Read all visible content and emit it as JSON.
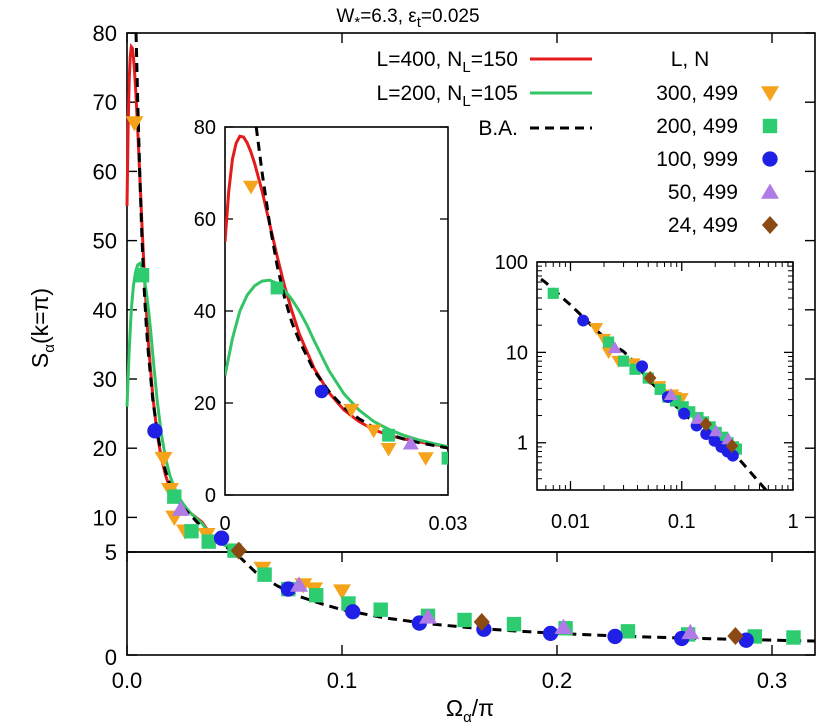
{
  "colors": {
    "red": "#e41a1c",
    "green": "#33c466",
    "orange": "#f5a31b",
    "square": "#2ecc71",
    "blue": "#1f1fe6",
    "purple": "#b07be6",
    "brown": "#8b4a13",
    "ba": "#000000"
  },
  "chart_data": {
    "type": "line",
    "title": {
      "W": "W",
      "wsub": "*",
      "weq": "=6.3, ",
      "eps": "ε",
      "esub": "t",
      "eeq": "=0.025"
    },
    "xlabel": {
      "main": "Ω",
      "sub": "α",
      "rest": "/π"
    },
    "ylabel": {
      "main": "S",
      "sub": "α",
      "rest": "(k=π)"
    },
    "legend": {
      "lines": [
        {
          "key": "red",
          "pre": "L=400, N",
          "sub": "L",
          "post": "=150"
        },
        {
          "key": "green",
          "pre": "L=200, N",
          "sub": "L",
          "post": "=105"
        },
        {
          "key": "ba",
          "pre": "B.A.",
          "sub": "",
          "post": ""
        }
      ],
      "header": "L,  N",
      "points": [
        {
          "key": "orange",
          "label": "300, 499",
          "marker": "tri-down"
        },
        {
          "key": "square",
          "label": "200, 499",
          "marker": "square"
        },
        {
          "key": "blue",
          "label": "100, 999",
          "marker": "circle"
        },
        {
          "key": "purple",
          "label": "50, 499",
          "marker": "tri-up"
        },
        {
          "key": "brown",
          "label": "24, 499",
          "marker": "diamond"
        }
      ]
    },
    "upper_panel": {
      "xlim": [
        0,
        0.32
      ],
      "ylim": [
        5,
        80
      ],
      "xticks": [
        0.0,
        0.1,
        0.2,
        0.3
      ],
      "xtick_labels": [
        "0.0",
        "0.1",
        "0.2",
        "0.3"
      ],
      "yticks": [
        10,
        20,
        30,
        40,
        50,
        60,
        70,
        80
      ],
      "ytick_labels": [
        "10",
        "20",
        "30",
        "40",
        "50",
        "60",
        "70",
        "80"
      ]
    },
    "lower_panel": {
      "ylim": [
        0,
        5
      ],
      "yticks": [
        0,
        5
      ],
      "ytick_labels": [
        "0",
        "5"
      ]
    },
    "inset_linear": {
      "xlim": [
        0,
        0.03
      ],
      "ylim": [
        0,
        80
      ],
      "xtick_labels": [
        "0",
        "0.03"
      ],
      "yticks": [
        0,
        20,
        40,
        60,
        80
      ],
      "ytick_labels": [
        "0",
        "20",
        "40",
        "60",
        "80"
      ]
    },
    "inset_log": {
      "xlim": [
        0.005,
        1
      ],
      "ylim": [
        0.3,
        100
      ],
      "xticks": [
        0.01,
        0.1,
        1
      ],
      "xtick_labels": [
        "0.01",
        "0.1",
        "1"
      ],
      "yticks": [
        1,
        10,
        100
      ],
      "ytick_labels": [
        "1",
        "10",
        "100"
      ]
    },
    "series": [
      {
        "key": "red",
        "kind": "line",
        "x": [
          0.0,
          0.0005,
          0.001,
          0.0015,
          0.002,
          0.0025,
          0.003,
          0.0035,
          0.004,
          0.005,
          0.006,
          0.007,
          0.008,
          0.009,
          0.01,
          0.012,
          0.014,
          0.016,
          0.018,
          0.02,
          0.022,
          0.024,
          0.026,
          0.028,
          0.03,
          0.035,
          0.04,
          0.05
        ],
        "y": [
          55,
          66,
          73,
          76.5,
          78,
          77.8,
          76.5,
          74.5,
          72,
          66,
          59,
          52,
          45.5,
          40,
          35,
          27.5,
          22.2,
          18.5,
          16,
          14.2,
          13,
          12.2,
          11.6,
          11,
          10.5,
          9.3,
          7.0,
          5.2
        ]
      },
      {
        "key": "green",
        "kind": "line",
        "x": [
          0.0,
          0.001,
          0.002,
          0.003,
          0.004,
          0.005,
          0.006,
          0.007,
          0.008,
          0.009,
          0.01,
          0.011,
          0.012,
          0.014,
          0.016,
          0.018,
          0.02,
          0.022,
          0.024,
          0.026,
          0.028,
          0.03,
          0.035,
          0.04,
          0.05
        ],
        "y": [
          26,
          34,
          40,
          43.5,
          45.5,
          46.5,
          46.7,
          46,
          44.5,
          42.5,
          40,
          37,
          33.5,
          27,
          22,
          18.5,
          16,
          14.3,
          13,
          12,
          11.2,
          10.5,
          9.1,
          6.9,
          5.2
        ]
      },
      {
        "key": "ba",
        "kind": "line",
        "x": [
          0.0042,
          0.005,
          0.006,
          0.007,
          0.008,
          0.009,
          0.01,
          0.012,
          0.014,
          0.016,
          0.018,
          0.02,
          0.022,
          0.024,
          0.026,
          0.028,
          0.03,
          0.035,
          0.04,
          0.045,
          0.05,
          0.06,
          0.07,
          0.08,
          0.09,
          0.1,
          0.12,
          0.14,
          0.16,
          0.18,
          0.2,
          0.22,
          0.24,
          0.26,
          0.28,
          0.3,
          0.32
        ],
        "y": [
          80,
          70,
          59,
          50,
          43,
          37.5,
          33.5,
          27,
          22.5,
          19,
          16.6,
          14.7,
          13.3,
          12.2,
          11.4,
          10.8,
          10.2,
          8.5,
          6.9,
          5.9,
          5.0,
          4.0,
          3.35,
          2.85,
          2.5,
          2.2,
          1.8,
          1.52,
          1.32,
          1.17,
          1.05,
          0.96,
          0.88,
          0.82,
          0.77,
          0.72,
          0.68
        ]
      },
      {
        "key": "orange",
        "kind": "points",
        "marker": "tri-down",
        "x": [
          0.0035,
          0.017,
          0.02,
          0.022,
          0.027,
          0.037,
          0.063,
          0.082,
          0.087,
          0.1
        ],
        "y": [
          67,
          18.5,
          14,
          10,
          8,
          7.5,
          4.2,
          3.4,
          3.2,
          3.1
        ]
      },
      {
        "key": "square",
        "kind": "points",
        "marker": "square",
        "x": [
          0.007,
          0.022,
          0.03,
          0.038,
          0.05,
          0.064,
          0.075,
          0.088,
          0.103,
          0.118,
          0.14,
          0.157,
          0.18,
          0.204,
          0.233,
          0.261,
          0.292,
          0.31
        ],
        "y": [
          45,
          13,
          8,
          6.5,
          5.2,
          3.9,
          3.2,
          2.9,
          2.5,
          2.2,
          1.9,
          1.7,
          1.5,
          1.3,
          1.15,
          1.0,
          0.9,
          0.85
        ]
      },
      {
        "key": "blue",
        "kind": "points",
        "marker": "circle",
        "x": [
          0.013,
          0.044,
          0.075,
          0.105,
          0.136,
          0.166,
          0.197,
          0.227,
          0.258,
          0.288
        ],
        "y": [
          22.5,
          7.0,
          3.2,
          2.1,
          1.55,
          1.25,
          1.05,
          0.9,
          0.8,
          0.72
        ]
      },
      {
        "key": "purple",
        "kind": "points",
        "marker": "tri-up",
        "x": [
          0.025,
          0.08,
          0.14,
          0.203,
          0.262
        ],
        "y": [
          11.2,
          3.4,
          1.85,
          1.35,
          1.1
        ]
      },
      {
        "key": "brown",
        "kind": "points",
        "marker": "diamond",
        "x": [
          0.052,
          0.165,
          0.283
        ],
        "y": [
          5.2,
          1.6,
          0.92
        ]
      }
    ]
  }
}
